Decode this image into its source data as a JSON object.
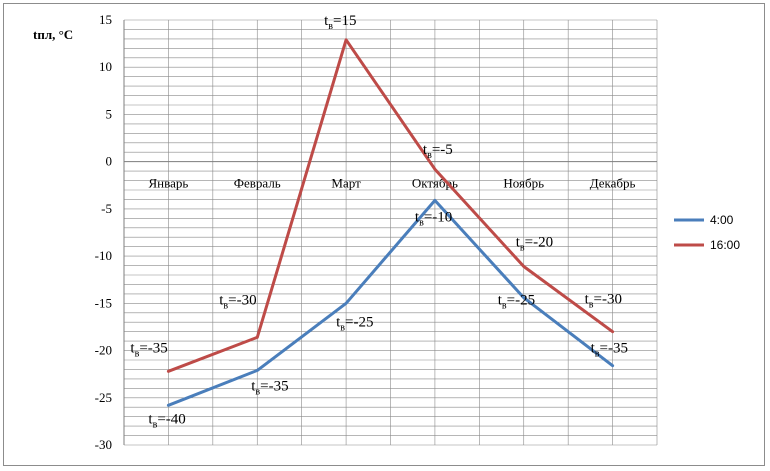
{
  "chart_data": {
    "type": "line",
    "ylabel": "tпл, °C",
    "ylim": [
      -30,
      15
    ],
    "ytick_step": 5,
    "ytick_labels": [
      "-30",
      "-25",
      "-20",
      "-15",
      "-10",
      "-5",
      "0",
      "5",
      "10",
      "15"
    ],
    "grid": true,
    "legend_position": "right",
    "categories": [
      "Январь",
      "Февраль",
      "Март",
      "Октябрь",
      "Ноябрь",
      "Декабрь"
    ],
    "series": [
      {
        "name": "4:00",
        "color": "#4a7ebb",
        "values": [
          -25.8,
          -22.1,
          -15.0,
          -4.1,
          -14.4,
          -21.6
        ]
      },
      {
        "name": "16:00",
        "color": "#be4b48",
        "values": [
          -22.2,
          -18.6,
          12.9,
          -0.8,
          -11.1,
          -18.0
        ]
      }
    ],
    "annotations": [
      {
        "series": "4:00",
        "index": 0,
        "prefix": "t",
        "sub": "в",
        "value": "=-40"
      },
      {
        "series": "4:00",
        "index": 1,
        "prefix": "t",
        "sub": "в",
        "value": "=-35"
      },
      {
        "series": "4:00",
        "index": 2,
        "prefix": "t",
        "sub": "в",
        "value": "=-25"
      },
      {
        "series": "4:00",
        "index": 3,
        "prefix": "t",
        "sub": "в",
        "value": "=-10"
      },
      {
        "series": "4:00",
        "index": 4,
        "prefix": "t",
        "sub": "в",
        "value": "=-25"
      },
      {
        "series": "4:00",
        "index": 5,
        "prefix": "t",
        "sub": "в",
        "value": "=-35"
      },
      {
        "series": "16:00",
        "index": 0,
        "prefix": "t",
        "sub": "в",
        "value": "=-35"
      },
      {
        "series": "16:00",
        "index": 1,
        "prefix": "t",
        "sub": "в",
        "value": "=-30"
      },
      {
        "series": "16:00",
        "index": 2,
        "prefix": "t",
        "sub": "в",
        "value": "=15"
      },
      {
        "series": "16:00",
        "index": 3,
        "prefix": "t",
        "sub": "в",
        "value": "=-5"
      },
      {
        "series": "16:00",
        "index": 4,
        "prefix": "t",
        "sub": "в",
        "value": "=-20"
      },
      {
        "series": "16:00",
        "index": 5,
        "prefix": "t",
        "sub": "в",
        "value": "=-30"
      }
    ]
  }
}
